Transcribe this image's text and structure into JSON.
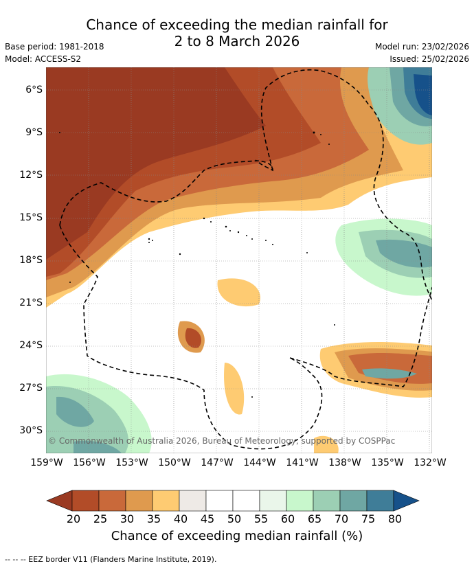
{
  "title": {
    "line1": "Chance of exceeding the median rainfall for",
    "line2": "2 to 8 March 2026"
  },
  "meta": {
    "base_period": "Base period: 1981-2018",
    "model": "Model: ACCESS-S2",
    "model_run": "Model run: 23/02/2026",
    "issued": "Issued: 25/02/2026"
  },
  "axes": {
    "x_ticks": [
      "159°W",
      "156°W",
      "153°W",
      "150°W",
      "147°W",
      "144°W",
      "141°W",
      "138°W",
      "135°W",
      "132°W"
    ],
    "y_ticks": [
      "6°S",
      "9°S",
      "12°S",
      "15°S",
      "18°S",
      "21°S",
      "24°S",
      "27°S",
      "30°S"
    ]
  },
  "copyright": "© Commonwealth of Australia 2026, Bureau of Meteorology, supported by COSPPac",
  "colorbar": {
    "ticks": [
      "20",
      "25",
      "30",
      "35",
      "40",
      "45",
      "50",
      "55",
      "60",
      "65",
      "70",
      "75",
      "80"
    ],
    "colors": [
      "#9a3a22",
      "#b24c28",
      "#c9693a",
      "#df9a4e",
      "#fecb72",
      "#eeeae6",
      "#ffffff",
      "#ffffff",
      "#eaf6ea",
      "#c8f7cc",
      "#9ccfb4",
      "#6fa7a3",
      "#3f7d98",
      "#16518a"
    ],
    "label": "Chance of exceeding median rainfall (%)"
  },
  "footer": "--  --  -- EEZ border V11 (Flanders Marine Institute, 2019)."
}
